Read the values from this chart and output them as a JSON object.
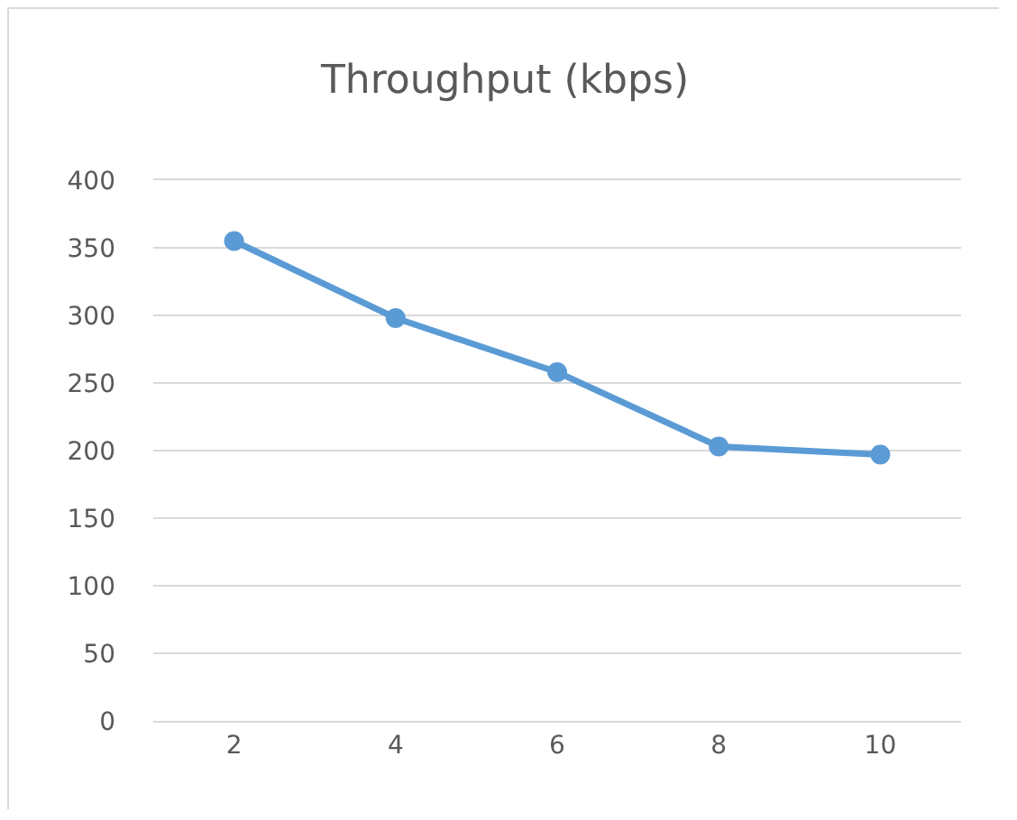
{
  "chart_data": {
    "type": "line",
    "title": "Throughput (kbps)",
    "categories": [
      "2",
      "4",
      "6",
      "8",
      "10"
    ],
    "series": [
      {
        "color": "#5b9bd5",
        "values": [
          355,
          298,
          258,
          203,
          197
        ]
      }
    ],
    "ylim": [
      0,
      400
    ],
    "yticks": [
      0,
      50,
      100,
      150,
      200,
      250,
      300,
      350,
      400
    ],
    "grid": "y",
    "marker": "circle",
    "line_style": "solid"
  }
}
